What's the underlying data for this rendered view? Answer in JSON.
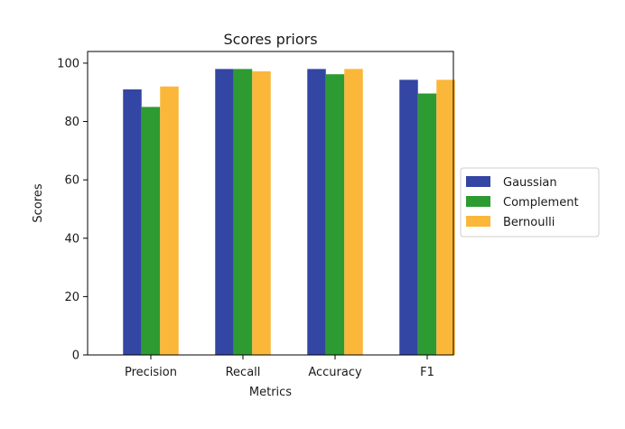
{
  "chart_data": {
    "type": "bar",
    "title": "Scores priors",
    "xlabel": "Metrics",
    "ylabel": "Scores",
    "categories": [
      "Precision",
      "Recall",
      "Accuracy",
      "F1"
    ],
    "ylim": [
      0,
      104
    ],
    "yticks": [
      0,
      20,
      40,
      60,
      80,
      100
    ],
    "grid": false,
    "legend_position": "right",
    "series": [
      {
        "name": "Gaussian",
        "color": "#3346a3",
        "values": [
          91,
          98,
          98,
          94.3
        ]
      },
      {
        "name": "Complement",
        "color": "#2e9a32",
        "values": [
          85,
          98,
          96.2,
          89.6
        ]
      },
      {
        "name": "Bernoulli",
        "color": "#fbb739",
        "values": [
          92,
          97.2,
          98,
          94.3
        ]
      }
    ]
  }
}
